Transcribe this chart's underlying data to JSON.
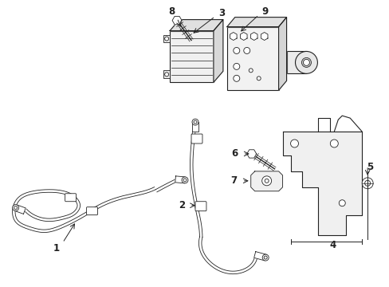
{
  "bg_color": "#ffffff",
  "line_color": "#222222",
  "figsize": [
    4.89,
    3.6
  ],
  "dpi": 100,
  "lw": 0.8,
  "thin": 0.6
}
